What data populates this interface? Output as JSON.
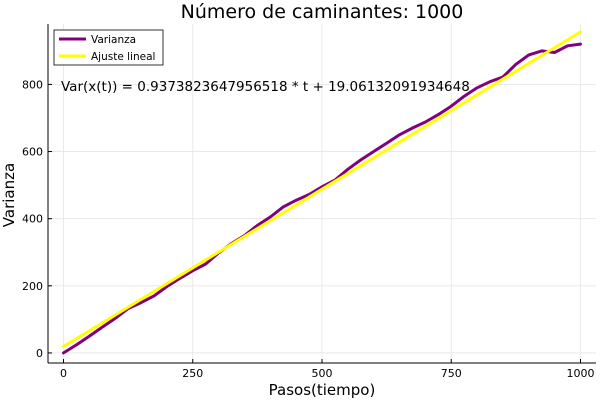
{
  "chart_data": {
    "type": "line",
    "title": "Número de caminantes: 1000",
    "xlabel": "Pasos(tiempo)",
    "ylabel": "Varianza",
    "xlim": [
      -30,
      1030
    ],
    "ylim": [
      -30,
      980
    ],
    "x_ticks": [
      0,
      250,
      500,
      750,
      1000
    ],
    "x_tick_labels": [
      "0",
      "250",
      "500",
      "750",
      "1000"
    ],
    "y_ticks": [
      0,
      200,
      400,
      600,
      800
    ],
    "y_tick_labels": [
      "0",
      "200",
      "400",
      "600",
      "800"
    ],
    "grid": true,
    "legend_position": "top-left",
    "annotation": "Var(x(t)) = 0.9373823647956518 * t + 19.06132091934648",
    "series": [
      {
        "name": "Varianza",
        "color": "#800080",
        "x": [
          0,
          25,
          50,
          75,
          100,
          125,
          150,
          175,
          200,
          225,
          250,
          275,
          300,
          325,
          350,
          375,
          400,
          425,
          450,
          475,
          500,
          525,
          550,
          575,
          600,
          625,
          650,
          675,
          700,
          725,
          750,
          775,
          800,
          825,
          850,
          875,
          900,
          925,
          950,
          975,
          1000
        ],
        "y": [
          0,
          24,
          50,
          77,
          103,
          132,
          150,
          170,
          198,
          222,
          245,
          265,
          298,
          326,
          350,
          380,
          405,
          435,
          455,
          472,
          495,
          515,
          547,
          575,
          600,
          625,
          650,
          670,
          688,
          710,
          735,
          765,
          790,
          808,
          822,
          860,
          888,
          900,
          895,
          915,
          920
        ]
      },
      {
        "name": "Ajuste lineal",
        "color": "#ffff00",
        "x": [
          0,
          1000
        ],
        "y": [
          19.06132091934648,
          956.4436856989983
        ]
      }
    ]
  }
}
